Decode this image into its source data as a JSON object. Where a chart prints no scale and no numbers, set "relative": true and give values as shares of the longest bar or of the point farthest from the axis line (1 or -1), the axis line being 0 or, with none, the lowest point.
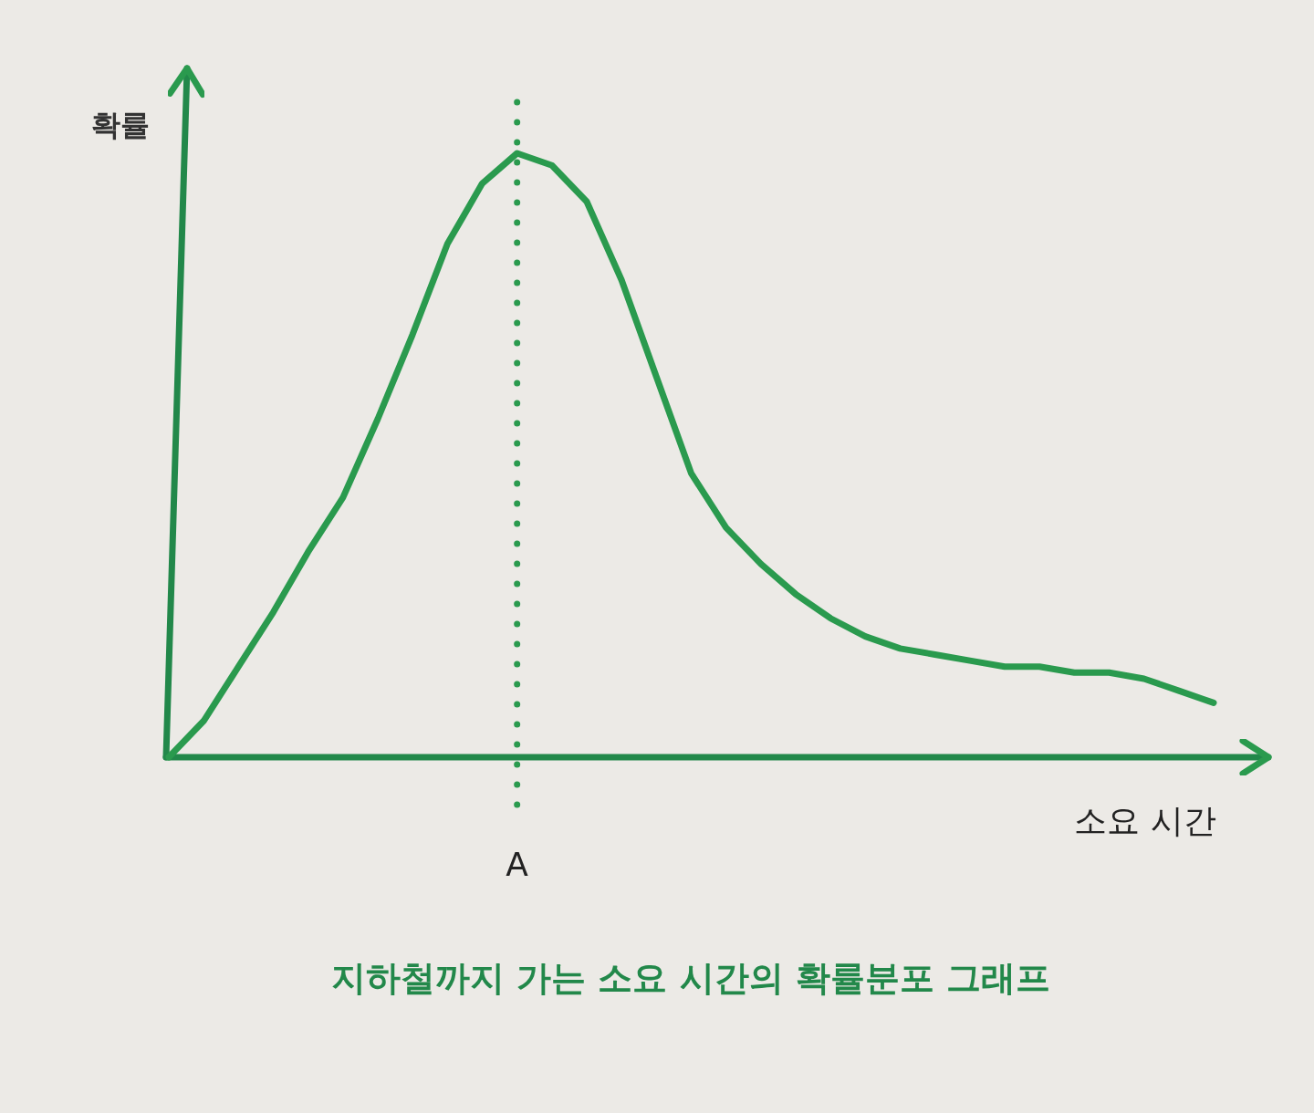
{
  "chart_data": {
    "type": "line",
    "title": "지하철까지 가는 소요 시간의 확률분포 그래프",
    "xlabel": "소요 시간",
    "ylabel": "확률",
    "relative": true,
    "categories": [
      null,
      null,
      null,
      null,
      null,
      null,
      null,
      null,
      null,
      null,
      null,
      null,
      null,
      null,
      null,
      null,
      null,
      null,
      null,
      null,
      null,
      null,
      null,
      null,
      null,
      null,
      null,
      null,
      null,
      null,
      null
    ],
    "series": [
      {
        "color": "#2a9a4e",
        "values": [
          0,
          0.06,
          0.15,
          0.24,
          0.34,
          0.43,
          0.56,
          0.7,
          0.85,
          0.95,
          1,
          0.98,
          0.92,
          0.79,
          0.63,
          0.47,
          0.38,
          0.32,
          0.27,
          0.23,
          0.2,
          0.18,
          0.17,
          0.16,
          0.15,
          0.15,
          0.14,
          0.14,
          0.13,
          0.11,
          0.09
        ]
      }
    ],
    "annotations": [
      "A"
    ]
  }
}
